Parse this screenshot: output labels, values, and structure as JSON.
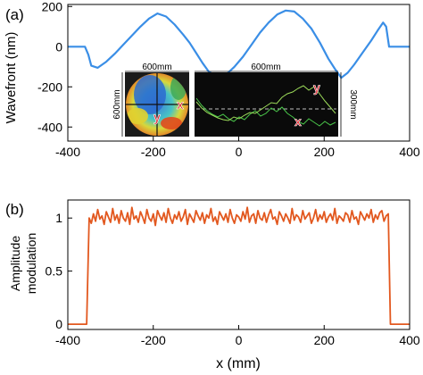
{
  "chart_data": [
    {
      "panel": "(a)",
      "type": "line",
      "ylabel": "Wavefront (nm)",
      "xlim": [
        -400,
        400
      ],
      "ylim": [
        -470,
        210
      ],
      "yticks": [
        200,
        0,
        -200,
        -400
      ],
      "xticks": [
        -400,
        -200,
        0,
        200,
        400
      ],
      "line_color": "#3a8ee6",
      "series": [
        {
          "x": [
            -400,
            -360,
            -352,
            -345,
            -330,
            -310,
            -290,
            -270,
            -250,
            -230,
            -210,
            -190,
            -170,
            -150,
            -130,
            -115,
            -100,
            -85,
            -70,
            -50,
            -30,
            -10,
            10,
            30,
            50,
            70,
            90,
            110,
            130,
            150,
            170,
            190,
            210,
            225,
            240,
            255,
            270,
            290,
            310,
            325,
            338,
            345,
            352,
            400
          ],
          "y": [
            0,
            0,
            -40,
            -95,
            -105,
            -75,
            -35,
            10,
            55,
            100,
            140,
            165,
            150,
            110,
            60,
            20,
            -30,
            -80,
            -125,
            -150,
            -140,
            -100,
            -50,
            10,
            70,
            120,
            160,
            180,
            175,
            140,
            90,
            20,
            -60,
            -110,
            -155,
            -130,
            -90,
            -30,
            30,
            80,
            120,
            100,
            0,
            0
          ]
        }
      ],
      "inset": {
        "map_width_label": "600mm",
        "map_height_label": "600mm",
        "profile_width_label": "600mm",
        "profile_height_label": "300mm",
        "label_x": "x",
        "label_y": "y"
      }
    },
    {
      "panel": "(b)",
      "type": "line",
      "ylabel": "Amplitude modulation",
      "xlabel": "x (mm)",
      "xlim": [
        -400,
        400
      ],
      "ylim": [
        -0.05,
        1.17
      ],
      "yticks": [
        1,
        0.5,
        0
      ],
      "ytick_labels": [
        "1",
        "0.5",
        "0"
      ],
      "xticks": [
        -400,
        -200,
        0,
        200,
        400
      ],
      "line_color": "#e2581f",
      "series": [
        {
          "x": [
            -400,
            -356,
            -350,
            -345,
            -340,
            -335,
            -330,
            -325,
            -320,
            -315,
            -310,
            -305,
            -300,
            -295,
            -290,
            -285,
            -280,
            -275,
            -270,
            -265,
            -260,
            -255,
            -250,
            -245,
            -240,
            -235,
            -230,
            -225,
            -220,
            -215,
            -210,
            -205,
            -200,
            -195,
            -190,
            -185,
            -180,
            -175,
            -170,
            -165,
            -160,
            -155,
            -150,
            -145,
            -140,
            -135,
            -130,
            -125,
            -120,
            -115,
            -110,
            -105,
            -100,
            -95,
            -90,
            -85,
            -80,
            -75,
            -70,
            -65,
            -60,
            -55,
            -50,
            -45,
            -40,
            -35,
            -30,
            -25,
            -20,
            -15,
            -10,
            -5,
            0,
            5,
            10,
            15,
            20,
            25,
            30,
            35,
            40,
            45,
            50,
            55,
            60,
            65,
            70,
            75,
            80,
            85,
            90,
            95,
            100,
            105,
            110,
            115,
            120,
            125,
            130,
            135,
            140,
            145,
            150,
            155,
            160,
            165,
            170,
            175,
            180,
            185,
            190,
            195,
            200,
            205,
            210,
            215,
            220,
            225,
            230,
            235,
            240,
            245,
            250,
            255,
            260,
            265,
            270,
            275,
            280,
            285,
            290,
            295,
            300,
            305,
            310,
            315,
            320,
            325,
            330,
            335,
            340,
            345,
            350,
            355,
            400
          ],
          "y": [
            0,
            0,
            1.0,
            0.95,
            1.04,
            0.97,
            1.08,
            0.99,
            1.02,
            0.94,
            1.06,
            1.01,
            0.96,
            1.09,
            0.98,
            1.03,
            0.95,
            1.07,
            1.0,
            0.97,
            1.05,
            0.94,
            1.1,
            0.99,
            1.02,
            0.96,
            1.06,
            1.01,
            0.95,
            1.08,
            1.0,
            0.97,
            1.04,
            0.93,
            1.07,
            1.02,
            0.98,
            1.05,
            0.96,
            1.09,
            1.0,
            0.95,
            1.03,
            0.99,
            1.06,
            0.97,
            1.01,
            1.08,
            0.94,
            1.04,
            1.0,
            0.96,
            1.07,
            1.02,
            0.98,
            1.05,
            0.95,
            1.03,
            1.0,
            1.09,
            0.97,
            1.01,
            0.94,
            1.06,
            1.02,
            0.98,
            1.04,
            0.96,
            1.08,
            1.0,
            0.95,
            1.03,
            1.01,
            0.97,
            1.06,
            0.99,
            1.1,
            0.96,
            1.02,
            1.04,
            0.95,
            1.07,
            1.0,
            0.98,
            1.05,
            0.96,
            1.03,
            1.08,
            0.99,
            1.01,
            0.94,
            1.06,
            1.02,
            0.97,
            1.04,
            1.0,
            0.95,
            1.09,
            0.98,
            1.03,
            1.01,
            0.96,
            1.07,
            0.99,
            1.02,
            1.05,
            0.95,
            1.0,
            1.08,
            0.97,
            1.03,
            0.99,
            1.06,
            0.96,
            1.01,
            1.04,
            0.98,
            1.09,
            0.95,
            1.02,
            1.0,
            0.97,
            1.05,
            1.03,
            0.96,
            1.07,
            0.99,
            1.01,
            0.94,
            1.06,
            1.02,
            0.98,
            1.04,
            1.0,
            1.08,
            0.96,
            1.03,
            0.99,
            1.05,
            1.07,
            0.97,
            1.02,
            1.04,
            0,
            0
          ]
        }
      ]
    }
  ]
}
